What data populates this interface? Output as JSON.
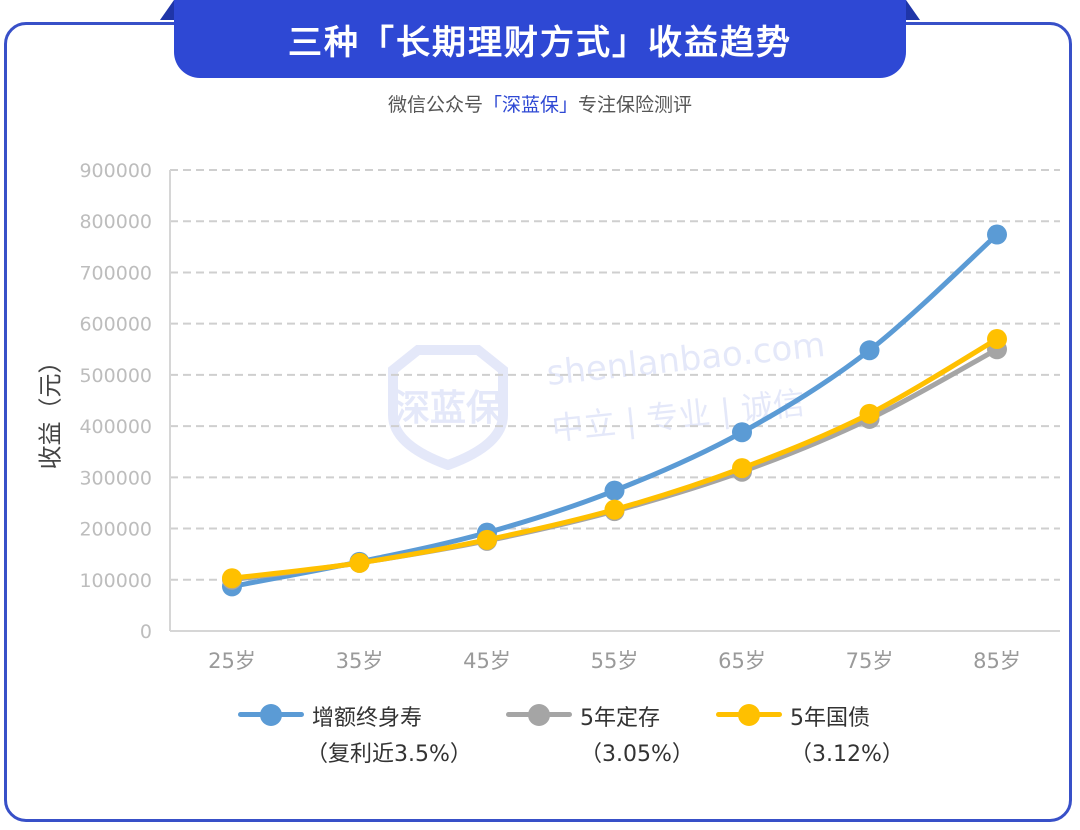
{
  "header": {
    "title": "三种「长期理财方式」收益趋势",
    "subtitle_prefix": "微信公众号",
    "subtitle_brand": "「深蓝保」",
    "subtitle_suffix": "专注保险测评"
  },
  "watermark": {
    "logo_text": "深蓝保",
    "site": "shenlanbao.com",
    "slogan": "中立 | 专业 | 诚信"
  },
  "chart_data": {
    "type": "line",
    "title": "",
    "xlabel": "",
    "ylabel": "收益（元）",
    "categories": [
      "25岁",
      "35岁",
      "45岁",
      "55岁",
      "65岁",
      "75岁",
      "85岁"
    ],
    "ylim": [
      0,
      900000
    ],
    "yticks": [
      "0",
      "100000",
      "200000",
      "300000",
      "400000",
      "500000",
      "600000",
      "700000",
      "800000",
      "900000"
    ],
    "grid": true,
    "legend_position": "bottom",
    "series": [
      {
        "name": "增额终身寿",
        "note": "（复利近3.5%）",
        "color": "#5b9bd5",
        "values": [
          87000,
          135000,
          192000,
          274000,
          388000,
          548000,
          774000
        ]
      },
      {
        "name": "5年定存",
        "note": "（3.05%）",
        "color": "#a5a5a5",
        "values": [
          100000,
          133000,
          176000,
          234000,
          311000,
          414000,
          550000
        ]
      },
      {
        "name": "5年国债",
        "note": "（3.12%）",
        "color": "#ffc000",
        "values": [
          103000,
          133000,
          178000,
          237000,
          318000,
          424000,
          570000
        ]
      }
    ]
  }
}
